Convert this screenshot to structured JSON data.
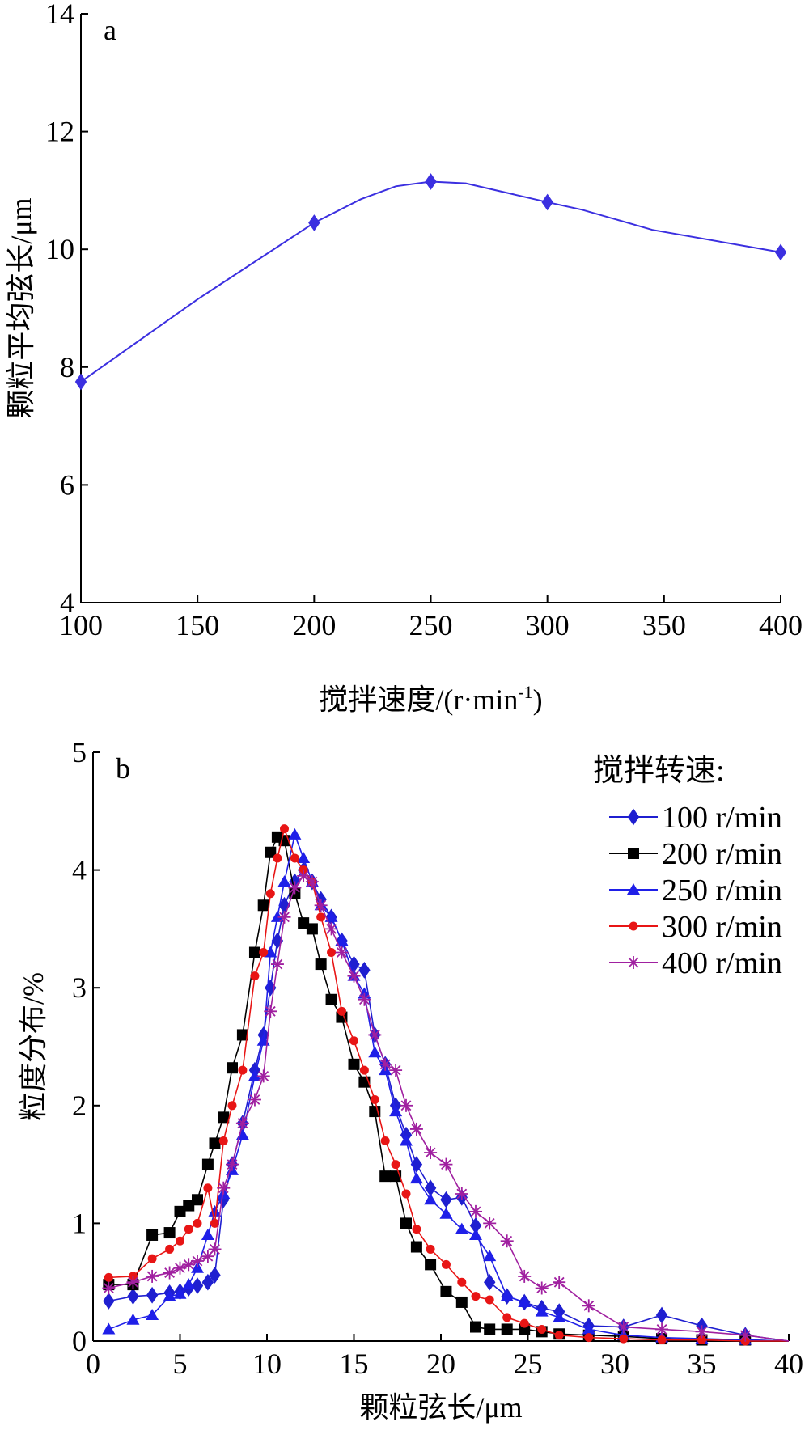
{
  "chart_data": [
    {
      "type": "line",
      "panel_label": "a",
      "xlabel_main": "搅拌速度/(r·min",
      "xlabel_sup": "-1",
      "xlabel_close": ")",
      "ylabel": "颗粒平均弦长/μm",
      "xlim": [
        100,
        400
      ],
      "ylim": [
        4,
        14
      ],
      "x_ticks": [
        100,
        150,
        200,
        250,
        300,
        350,
        400
      ],
      "y_ticks": [
        4,
        6,
        8,
        10,
        12,
        14
      ],
      "x_tick_labels": [
        "100",
        "150",
        "200",
        "250",
        "300",
        "350",
        "400"
      ],
      "y_tick_labels": [
        "4",
        "6",
        "8",
        "10",
        "12",
        "14"
      ],
      "grid": false,
      "color": "#3b2fe0",
      "x": [
        100,
        200,
        250,
        300,
        400
      ],
      "y": [
        7.75,
        10.45,
        11.15,
        10.8,
        9.95
      ],
      "curve_x": [
        100,
        150,
        200,
        220,
        235,
        250,
        265,
        300,
        315,
        345,
        400
      ],
      "curve_y": [
        7.75,
        9.15,
        10.45,
        10.85,
        11.07,
        11.15,
        11.12,
        10.8,
        10.67,
        10.33,
        9.95
      ]
    },
    {
      "type": "line",
      "panel_label": "b",
      "xlabel": "颗粒弦长/μm",
      "ylabel": "粒度分布/%",
      "xlim": [
        0,
        40
      ],
      "ylim": [
        0,
        5
      ],
      "x_ticks": [
        0,
        5,
        10,
        15,
        20,
        25,
        30,
        35,
        40
      ],
      "y_ticks": [
        0,
        1,
        2,
        3,
        4,
        5
      ],
      "x_tick_labels": [
        "0",
        "5",
        "10",
        "15",
        "20",
        "25",
        "30",
        "35",
        "40"
      ],
      "y_tick_labels": [
        "0",
        "1",
        "2",
        "3",
        "4",
        "5"
      ],
      "grid": false,
      "legend_title": "搅拌转速:",
      "legend_position": "top-right",
      "series": [
        {
          "name": "100 r/min",
          "color": "#1f1fd0",
          "marker": "diamond",
          "x": [
            0.9,
            2.3,
            3.4,
            4.4,
            5.0,
            5.5,
            6.0,
            6.6,
            7.0,
            7.5,
            8.0,
            8.6,
            9.3,
            9.8,
            10.2,
            10.6,
            11.0,
            11.6,
            12.1,
            12.6,
            13.1,
            13.7,
            14.3,
            15.0,
            15.6,
            16.2,
            16.8,
            17.4,
            18.0,
            18.6,
            19.4,
            20.3,
            21.2,
            22.0,
            22.8,
            23.8,
            24.8,
            25.8,
            26.8,
            28.5,
            30.5,
            32.7,
            35.0,
            37.5,
            40.0
          ],
          "y": [
            0.34,
            0.38,
            0.39,
            0.41,
            0.42,
            0.45,
            0.47,
            0.5,
            0.56,
            1.2,
            1.5,
            1.85,
            2.3,
            2.6,
            3.0,
            3.4,
            3.7,
            3.9,
            4.0,
            3.9,
            3.75,
            3.6,
            3.4,
            3.2,
            3.15,
            2.6,
            2.35,
            2.0,
            1.75,
            1.5,
            1.3,
            1.2,
            1.22,
            0.98,
            0.5,
            0.38,
            0.33,
            0.28,
            0.25,
            0.13,
            0.12,
            0.22,
            0.13,
            0.05,
            0.0
          ]
        },
        {
          "name": "200 r/min",
          "color": "#000000",
          "marker": "square",
          "x": [
            0.9,
            2.3,
            3.4,
            4.4,
            5.0,
            5.5,
            6.0,
            6.6,
            7.0,
            7.5,
            8.0,
            8.6,
            9.3,
            9.8,
            10.2,
            10.6,
            11.0,
            11.6,
            12.1,
            12.6,
            13.1,
            13.7,
            14.3,
            15.0,
            15.6,
            16.2,
            16.8,
            17.4,
            18.0,
            18.6,
            19.4,
            20.3,
            21.2,
            22.0,
            22.8,
            23.8,
            24.8,
            25.8,
            26.8,
            28.5,
            30.5,
            32.7,
            35.0,
            37.5,
            40.0
          ],
          "y": [
            0.48,
            0.48,
            0.9,
            0.92,
            1.1,
            1.15,
            1.2,
            1.5,
            1.68,
            1.9,
            2.32,
            2.6,
            3.3,
            3.7,
            4.15,
            4.28,
            4.25,
            3.8,
            3.55,
            3.5,
            3.2,
            2.9,
            2.75,
            2.35,
            2.2,
            1.95,
            1.4,
            1.4,
            1.0,
            0.8,
            0.65,
            0.42,
            0.33,
            0.12,
            0.1,
            0.1,
            0.1,
            0.08,
            0.06,
            0.05,
            0.04,
            0.02,
            0.01,
            0.01,
            0.0
          ]
        },
        {
          "name": "250 r/min",
          "color": "#1f1fe8",
          "marker": "triangle",
          "x": [
            0.9,
            2.3,
            3.4,
            4.4,
            5.0,
            5.5,
            6.0,
            6.6,
            7.0,
            7.5,
            8.0,
            8.6,
            9.3,
            9.8,
            10.2,
            10.6,
            11.0,
            11.6,
            12.1,
            12.6,
            13.1,
            13.7,
            14.3,
            15.0,
            15.6,
            16.2,
            16.8,
            17.4,
            18.0,
            18.6,
            19.4,
            20.3,
            21.2,
            22.0,
            22.8,
            23.8,
            24.8,
            25.8,
            26.8,
            28.5,
            30.5,
            32.7,
            35.0,
            37.5,
            40.0
          ],
          "y": [
            0.1,
            0.18,
            0.22,
            0.38,
            0.4,
            0.48,
            0.62,
            0.9,
            1.1,
            1.25,
            1.45,
            1.75,
            2.25,
            2.55,
            3.3,
            3.6,
            3.9,
            4.3,
            4.1,
            3.9,
            3.7,
            3.6,
            3.4,
            3.1,
            2.95,
            2.45,
            2.3,
            1.95,
            1.7,
            1.38,
            1.2,
            1.08,
            0.95,
            0.9,
            0.72,
            0.38,
            0.33,
            0.25,
            0.2,
            0.1,
            0.05,
            0.03,
            0.02,
            0.01,
            0.0
          ]
        },
        {
          "name": "300 r/min",
          "color": "#e81515",
          "marker": "circle",
          "x": [
            0.9,
            2.3,
            3.4,
            4.4,
            5.0,
            5.5,
            6.0,
            6.6,
            7.0,
            7.5,
            8.0,
            8.6,
            9.3,
            9.8,
            10.2,
            10.6,
            11.0,
            11.6,
            12.1,
            12.6,
            13.1,
            13.7,
            14.3,
            15.0,
            15.6,
            16.2,
            16.8,
            17.4,
            18.0,
            18.6,
            19.4,
            20.3,
            21.2,
            22.0,
            22.8,
            23.8,
            24.8,
            25.8,
            26.8,
            28.5,
            30.5,
            32.7,
            35.0,
            37.5,
            40.0
          ],
          "y": [
            0.54,
            0.55,
            0.7,
            0.78,
            0.85,
            0.95,
            1.0,
            1.3,
            1.0,
            1.7,
            2.0,
            2.3,
            3.1,
            3.3,
            3.8,
            4.1,
            4.35,
            4.1,
            4.0,
            3.9,
            3.6,
            3.3,
            2.8,
            2.55,
            2.3,
            2.05,
            1.7,
            1.5,
            1.25,
            0.95,
            0.78,
            0.65,
            0.5,
            0.38,
            0.35,
            0.2,
            0.15,
            0.1,
            0.05,
            0.03,
            0.02,
            0.01,
            0.01,
            0.0,
            0.0
          ]
        },
        {
          "name": "400 r/min",
          "color": "#a020a0",
          "marker": "star",
          "x": [
            0.9,
            2.3,
            3.4,
            4.4,
            5.0,
            5.5,
            6.0,
            6.6,
            7.0,
            7.5,
            8.0,
            8.6,
            9.3,
            9.8,
            10.2,
            10.6,
            11.0,
            11.6,
            12.1,
            12.6,
            13.1,
            13.7,
            14.3,
            15.0,
            15.6,
            16.2,
            16.8,
            17.4,
            18.0,
            18.6,
            19.4,
            20.3,
            21.2,
            22.0,
            22.8,
            23.8,
            24.8,
            25.8,
            26.8,
            28.5,
            30.5,
            32.7,
            35.0,
            37.5,
            40.0
          ],
          "y": [
            0.45,
            0.5,
            0.55,
            0.58,
            0.62,
            0.65,
            0.68,
            0.72,
            0.78,
            1.3,
            1.5,
            1.85,
            2.05,
            2.25,
            2.8,
            3.2,
            3.6,
            3.85,
            3.95,
            3.9,
            3.7,
            3.5,
            3.3,
            3.1,
            2.9,
            2.6,
            2.35,
            2.3,
            2.0,
            1.8,
            1.6,
            1.5,
            1.25,
            1.1,
            1.0,
            0.85,
            0.55,
            0.45,
            0.5,
            0.3,
            0.12,
            0.1,
            0.08,
            0.05,
            0.0
          ]
        }
      ]
    }
  ]
}
